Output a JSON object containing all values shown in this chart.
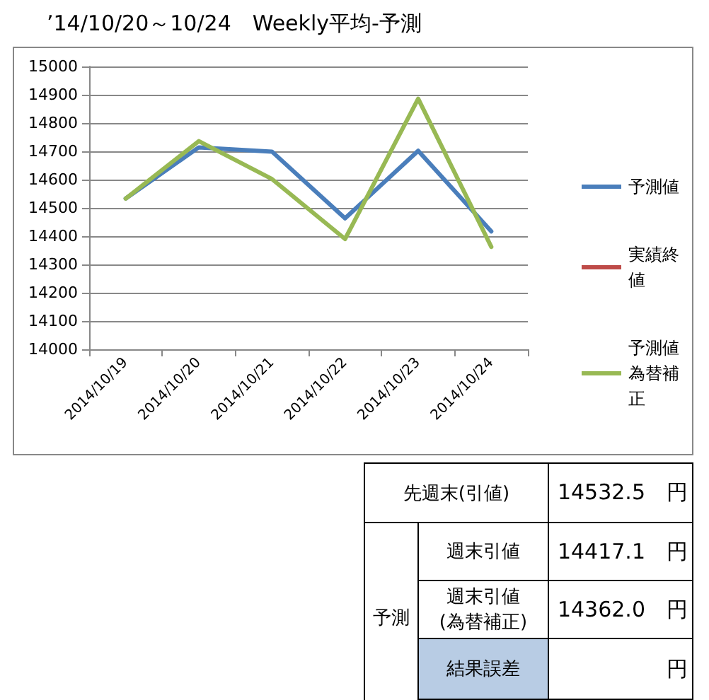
{
  "chart_data": {
    "type": "line",
    "title": "’14/10/20～10/24　Weekly平均-予測",
    "categories": [
      "2014/10/19",
      "2014/10/20",
      "2014/10/21",
      "2014/10/22",
      "2014/10/23",
      "2014/10/24"
    ],
    "series": [
      {
        "name": "予測値",
        "color": "#4a7ebb",
        "values": [
          14533,
          14714,
          14699,
          14463,
          14702,
          14417
        ]
      },
      {
        "name": "実績終値",
        "color": "#be4b48",
        "values": [
          null,
          null,
          null,
          null,
          null,
          null
        ]
      },
      {
        "name": "予測値為替補正",
        "color": "#98b954",
        "values": [
          14533,
          14736,
          14602,
          14390,
          14886,
          14362
        ]
      }
    ],
    "ylim": [
      14000,
      15000
    ],
    "yticks": [
      14000,
      14100,
      14200,
      14300,
      14400,
      14500,
      14600,
      14700,
      14800,
      14900,
      15000
    ],
    "grid": "y",
    "legend": "right",
    "marker": "none",
    "line_style": "solid",
    "annotations": [
      "先週末(引値)",
      "14532.5　円",
      "予測",
      "週末引値",
      "14417.1　円",
      "週末引値\n(為替補正)",
      "14362.0　円",
      "結果誤差",
      "円"
    ]
  }
}
